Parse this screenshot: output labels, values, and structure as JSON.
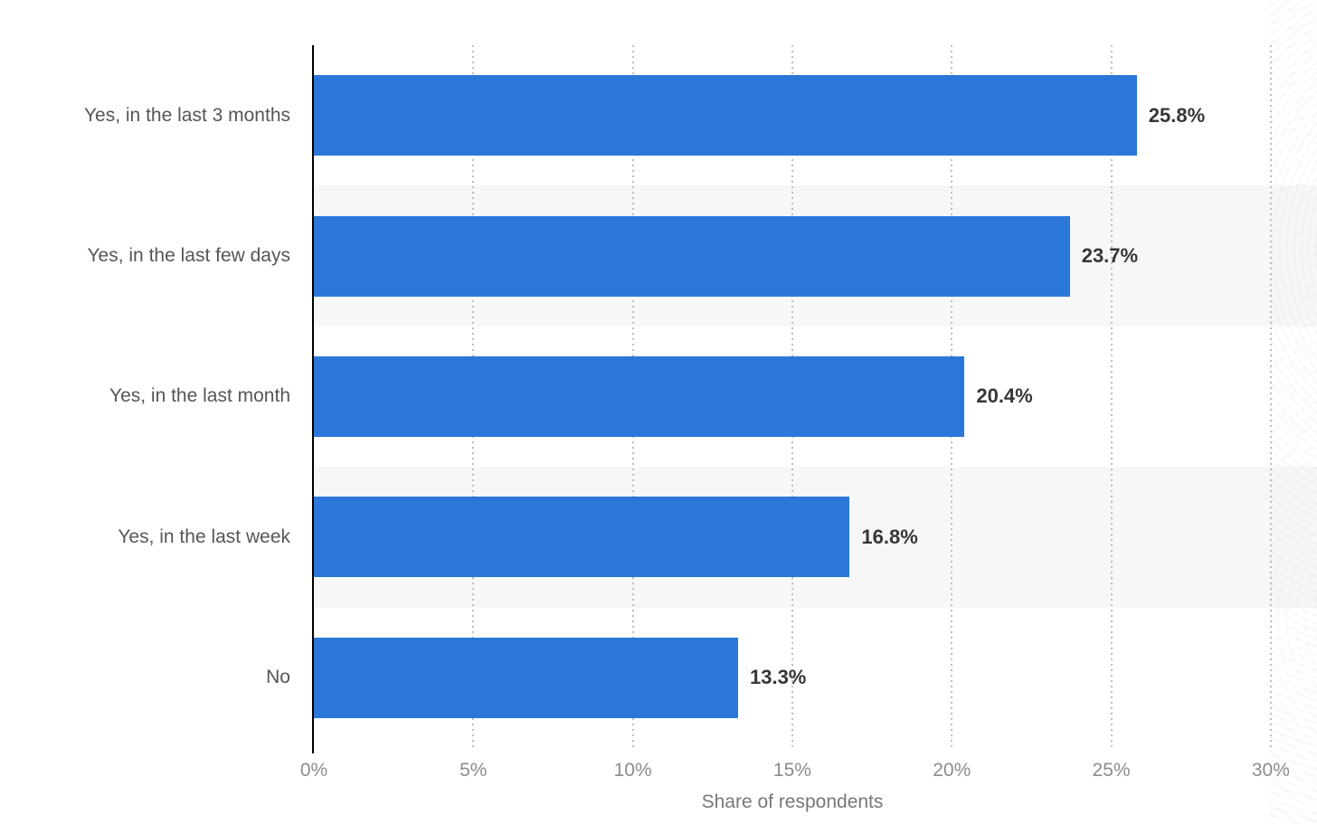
{
  "chart_data": {
    "type": "bar",
    "orientation": "horizontal",
    "title": "",
    "xlabel": "Share of respondents",
    "ylabel": "",
    "xlim": [
      0,
      31.45
    ],
    "grid": {
      "axis": "x",
      "style": "dotted"
    },
    "legend": null,
    "categories": [
      "Yes, in the last 3 months",
      "Yes, in the last few days",
      "Yes, in the last month",
      "Yes, in the last week",
      "No"
    ],
    "values": [
      25.8,
      23.7,
      20.4,
      16.8,
      13.3
    ],
    "bars": [
      {
        "category": "Yes, in the last 3 months",
        "value": 25.8,
        "label": "25.8%"
      },
      {
        "category": "Yes, in the last few days",
        "value": 23.7,
        "label": "23.7%"
      },
      {
        "category": "Yes, in the last month",
        "value": 20.4,
        "label": "20.4%"
      },
      {
        "category": "Yes, in the last week",
        "value": 16.8,
        "label": "16.8%"
      },
      {
        "category": "No",
        "value": 13.3,
        "label": "13.3%"
      }
    ],
    "xticks": [
      {
        "value": 0,
        "label": "0%"
      },
      {
        "value": 5,
        "label": "5%"
      },
      {
        "value": 10,
        "label": "10%"
      },
      {
        "value": 15,
        "label": "15%"
      },
      {
        "value": 20,
        "label": "20%"
      },
      {
        "value": 25,
        "label": "25%"
      },
      {
        "value": 30,
        "label": "30%"
      }
    ],
    "striped_rows": [
      1,
      3
    ],
    "colors": {
      "bar": "#2b77d9",
      "axis_line": "#000000",
      "category_label": "#565657",
      "value_label": "#363636",
      "tick_label": "#8c8c8c",
      "axis_title": "#777777",
      "gridline": "#bdbdbd",
      "row_stripe": "#f7f7f8",
      "background": "#ffffff"
    }
  }
}
